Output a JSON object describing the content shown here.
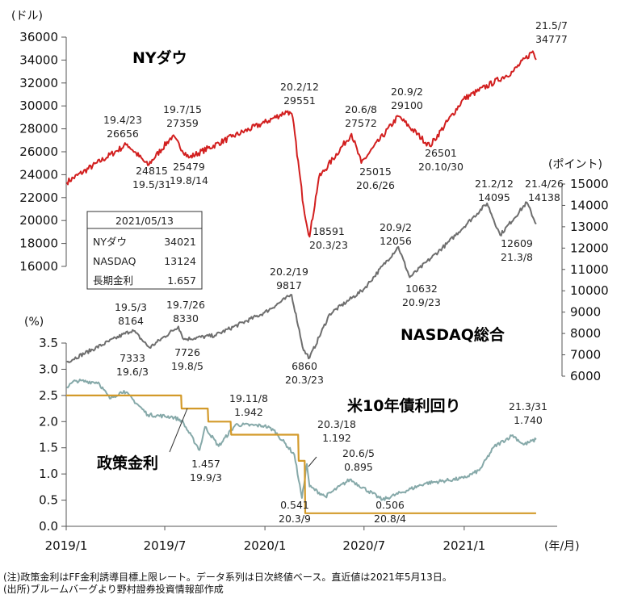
{
  "chart_data": {
    "type": "line",
    "x_ticks": [
      "2019/1",
      "2019/7",
      "2020/1",
      "2020/7",
      "2021/1"
    ],
    "x_unit": "(年/月)",
    "panels": [
      {
        "id": "dow",
        "title": "NYダウ",
        "unit": "(ドル)",
        "axis_side": "left",
        "ylim": [
          16000,
          36000
        ],
        "ticks": [
          "36000",
          "34000",
          "32000",
          "30000",
          "28000",
          "26000",
          "24000",
          "22000",
          "20000",
          "18000",
          "16000"
        ],
        "color": "#d21f1f",
        "anchors": [
          [
            "2019-01-02",
            23346
          ],
          [
            "2019-04-23",
            26656
          ],
          [
            "2019-05-31",
            24815
          ],
          [
            "2019-07-15",
            27359
          ],
          [
            "2019-08-14",
            25479
          ],
          [
            "2019-11-01",
            27300
          ],
          [
            "2019-12-31",
            28538
          ],
          [
            "2020-02-12",
            29551
          ],
          [
            "2020-02-21",
            28990
          ],
          [
            "2020-03-12",
            21200
          ],
          [
            "2020-03-23",
            18591
          ],
          [
            "2020-04-09",
            23719
          ],
          [
            "2020-06-08",
            27572
          ],
          [
            "2020-06-26",
            25015
          ],
          [
            "2020-09-02",
            29100
          ],
          [
            "2020-10-30",
            26501
          ],
          [
            "2020-12-31",
            30606
          ],
          [
            "2021-03-31",
            32982
          ],
          [
            "2021-05-07",
            34777
          ],
          [
            "2021-05-13",
            34021
          ]
        ],
        "annotations": [
          {
            "date": "19.4/23",
            "value": "26656"
          },
          {
            "date": "19.5/31",
            "value": "24815"
          },
          {
            "date": "19.7/15",
            "value": "27359"
          },
          {
            "date": "19.8/14",
            "value": "25479"
          },
          {
            "date": "20.2/12",
            "value": "29551"
          },
          {
            "date": "20.3/23",
            "value": "18591"
          },
          {
            "date": "20.6/8",
            "value": "27572"
          },
          {
            "date": "20.6/26",
            "value": "25015"
          },
          {
            "date": "20.9/2",
            "value": "29100"
          },
          {
            "date": "20.10/30",
            "value": "26501"
          },
          {
            "date": "21.5/7",
            "value": "34777"
          }
        ]
      },
      {
        "id": "nasdaq",
        "title": "NASDAQ総合",
        "unit": "(ポイント)",
        "axis_side": "right",
        "ylim": [
          6000,
          15000
        ],
        "ticks": [
          "15000",
          "14000",
          "13000",
          "12000",
          "11000",
          "10000",
          "9000",
          "8000",
          "7000",
          "6000"
        ],
        "color": "#6e6e6e",
        "anchors": [
          [
            "2019-01-02",
            6665
          ],
          [
            "2019-05-03",
            8164
          ],
          [
            "2019-06-03",
            7333
          ],
          [
            "2019-07-26",
            8330
          ],
          [
            "2019-08-05",
            7726
          ],
          [
            "2019-10-01",
            7908
          ],
          [
            "2019-12-31",
            8972
          ],
          [
            "2020-02-19",
            9817
          ],
          [
            "2020-03-12",
            7201
          ],
          [
            "2020-03-23",
            6860
          ],
          [
            "2020-04-29",
            8915
          ],
          [
            "2020-06-30",
            10058
          ],
          [
            "2020-09-02",
            12056
          ],
          [
            "2020-09-23",
            10632
          ],
          [
            "2020-11-30",
            12198
          ],
          [
            "2021-02-12",
            14095
          ],
          [
            "2021-03-08",
            12609
          ],
          [
            "2021-04-26",
            14138
          ],
          [
            "2021-05-13",
            13124
          ]
        ],
        "annotations": [
          {
            "date": "19.5/3",
            "value": "8164"
          },
          {
            "date": "19.6/3",
            "value": "7333"
          },
          {
            "date": "19.7/26",
            "value": "8330"
          },
          {
            "date": "19.8/5",
            "value": "7726"
          },
          {
            "date": "20.2/19",
            "value": "9817"
          },
          {
            "date": "20.3/23",
            "value": "6860"
          },
          {
            "date": "20.9/2",
            "value": "12056"
          },
          {
            "date": "20.9/23",
            "value": "10632"
          },
          {
            "date": "21.2/12",
            "value": "14095"
          },
          {
            "date": "21.3/8",
            "value": "12609"
          },
          {
            "date": "21.4/26",
            "value": "14138"
          }
        ]
      },
      {
        "id": "rates",
        "unit": "(%)",
        "axis_side": "left",
        "ylim": [
          0,
          3.5
        ],
        "ticks": [
          "3.5",
          "3.0",
          "2.5",
          "2.0",
          "1.5",
          "1.0",
          "0.5",
          "0.0"
        ],
        "series": [
          {
            "name": "米10年債利回り",
            "color": "#86a9a9",
            "anchors": [
              [
                "2019-01-02",
                2.66
              ],
              [
                "2019-01-18",
                2.78
              ],
              [
                "2019-03-01",
                2.75
              ],
              [
                "2019-03-22",
                2.44
              ],
              [
                "2019-04-17",
                2.59
              ],
              [
                "2019-05-31",
                2.13
              ],
              [
                "2019-07-15",
                2.09
              ],
              [
                "2019-08-01",
                2.02
              ],
              [
                "2019-09-03",
                1.457
              ],
              [
                "2019-09-13",
                1.9
              ],
              [
                "2019-10-08",
                1.53
              ],
              [
                "2019-11-08",
                1.942
              ],
              [
                "2019-12-31",
                1.92
              ],
              [
                "2020-01-17",
                1.84
              ],
              [
                "2020-02-24",
                1.37
              ],
              [
                "2020-03-09",
                0.541
              ],
              [
                "2020-03-18",
                1.192
              ],
              [
                "2020-03-23",
                0.76
              ],
              [
                "2020-04-21",
                0.57
              ],
              [
                "2020-06-05",
                0.895
              ],
              [
                "2020-08-04",
                0.506
              ],
              [
                "2020-10-21",
                0.82
              ],
              [
                "2020-12-31",
                0.92
              ],
              [
                "2021-01-29",
                1.07
              ],
              [
                "2021-02-25",
                1.52
              ],
              [
                "2021-03-31",
                1.74
              ],
              [
                "2021-04-20",
                1.56
              ],
              [
                "2021-05-13",
                1.657
              ]
            ]
          },
          {
            "name": "政策金利",
            "color": "#d39a2a",
            "anchors": [
              [
                "2019-01-01",
                2.5
              ],
              [
                "2019-07-31",
                2.5
              ],
              [
                "2019-08-01",
                2.25
              ],
              [
                "2019-09-18",
                2.25
              ],
              [
                "2019-09-19",
                2.0
              ],
              [
                "2019-10-30",
                2.0
              ],
              [
                "2019-10-31",
                1.75
              ],
              [
                "2020-03-02",
                1.75
              ],
              [
                "2020-03-03",
                1.25
              ],
              [
                "2020-03-14",
                1.25
              ],
              [
                "2020-03-15",
                0.25
              ],
              [
                "2021-05-13",
                0.25
              ]
            ]
          }
        ],
        "annotations": [
          {
            "date": "19.9/3",
            "value": "1.457"
          },
          {
            "date": "19.11/8",
            "value": "1.942"
          },
          {
            "date": "20.3/9",
            "value": "0.541"
          },
          {
            "date": "20.3/18",
            "value": "1.192"
          },
          {
            "date": "20.6/5",
            "value": "0.895"
          },
          {
            "date": "20.8/4",
            "value": "0.506"
          },
          {
            "date": "21.3/31",
            "value": "1.740"
          }
        ]
      }
    ]
  },
  "info_box": {
    "date": "2021/05/13",
    "rows": [
      {
        "label": "NYダウ",
        "value": "34021"
      },
      {
        "label": "NASDAQ",
        "value": "13124"
      },
      {
        "label": "長期金利",
        "value": "1.657"
      }
    ]
  },
  "notes": [
    "(注)政策金利はFF金利誘導目標上限レート。データ系列は日次終値ベース。直近値は2021年5月13日。",
    "(出所)ブルームバーグより野村證券投資情報部作成"
  ]
}
